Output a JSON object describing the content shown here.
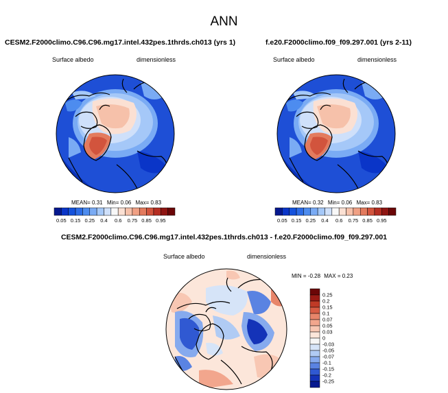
{
  "page_title": "ANN",
  "panels": [
    {
      "title": "CESM2.F2000climo.C96.C96.mg17.intel.432pes.1thrds.ch013 (yrs 1)",
      "variable": "Surface albedo",
      "units": "dimensionless",
      "stats": {
        "mean_label": "MEAN=",
        "mean": "0.31",
        "min_label": "Min=",
        "min": "0.06",
        "max_label": "Max=",
        "max": "0.83"
      }
    },
    {
      "title": "f.e20.F2000climo.f09_f09.297.001 (yrs 2-11)",
      "variable": "Surface albedo",
      "units": "dimensionless",
      "stats": {
        "mean_label": "MEAN=",
        "mean": "0.32",
        "min_label": "Min=",
        "min": "0.06",
        "max_label": "Max=",
        "max": "0.83"
      }
    },
    {
      "title": "CESM2.F2000climo.C96.C96.mg17.intel.432pes.1thrds.ch013 - f.e20.F2000climo.f09_f09.297.001",
      "variable": "Surface albedo",
      "units": "dimensionless",
      "stats": {
        "min_label": "MIN =",
        "min": "-0.28",
        "max_label": "MAX =",
        "max": "0.23"
      }
    }
  ],
  "chart_data": [
    {
      "type": "heatmap",
      "projection": "north polar stereographic",
      "title": "CESM2.F2000climo.C96.C96.mg17.intel.432pes.1thrds.ch013 (yrs 1)",
      "variable": "Surface albedo",
      "units": "dimensionless",
      "mean": 0.31,
      "min": 0.06,
      "max": 0.83,
      "colorbar": {
        "orientation": "horizontal",
        "tick_labels": [
          "0.05",
          "0.15",
          "0.25",
          "0.4",
          "0.6",
          "0.75",
          "0.85",
          "0.95"
        ],
        "colors": [
          "#05188f",
          "#0a35c8",
          "#1452dc",
          "#2c6ce6",
          "#4d8cef",
          "#7aabf4",
          "#a5c8f8",
          "#cfe0fa",
          "#f8f8f8",
          "#fbe0d3",
          "#f6c1aa",
          "#f0a084",
          "#e37b5e",
          "#d2543d",
          "#b52e22",
          "#8f1512",
          "#6b0607"
        ]
      }
    },
    {
      "type": "heatmap",
      "projection": "north polar stereographic",
      "title": "f.e20.F2000climo.f09_f09.297.001 (yrs 2-11)",
      "variable": "Surface albedo",
      "units": "dimensionless",
      "mean": 0.32,
      "min": 0.06,
      "max": 0.83,
      "colorbar": {
        "orientation": "horizontal",
        "tick_labels": [
          "0.05",
          "0.15",
          "0.25",
          "0.4",
          "0.6",
          "0.75",
          "0.85",
          "0.95"
        ],
        "colors": [
          "#05188f",
          "#0a35c8",
          "#1452dc",
          "#2c6ce6",
          "#4d8cef",
          "#7aabf4",
          "#a5c8f8",
          "#cfe0fa",
          "#f8f8f8",
          "#fbe0d3",
          "#f6c1aa",
          "#f0a084",
          "#e37b5e",
          "#d2543d",
          "#b52e22",
          "#8f1512",
          "#6b0607"
        ]
      }
    },
    {
      "type": "heatmap",
      "projection": "north polar stereographic",
      "title": "CESM2.F2000climo.C96.C96.mg17.intel.432pes.1thrds.ch013 - f.e20.F2000climo.f09_f09.297.001",
      "variable": "Surface albedo",
      "units": "dimensionless",
      "min": -0.28,
      "max": 0.23,
      "colorbar": {
        "orientation": "vertical",
        "tick_labels": [
          "0.25",
          "0.2",
          "0.15",
          "0.1",
          "0.07",
          "0.05",
          "0.03",
          "0",
          "-0.03",
          "-0.05",
          "-0.07",
          "-0.1",
          "-0.15",
          "-0.2",
          "-0.25"
        ],
        "colors": [
          "#6b0607",
          "#9a1a14",
          "#c03a26",
          "#d85c44",
          "#e8856a",
          "#f2a68d",
          "#f8c7b3",
          "#fce6da",
          "#f6f6f6",
          "#d6e4f8",
          "#b0cbf4",
          "#86aaee",
          "#5a83e2",
          "#3059d2",
          "#1433b8",
          "#06198f"
        ]
      }
    }
  ]
}
